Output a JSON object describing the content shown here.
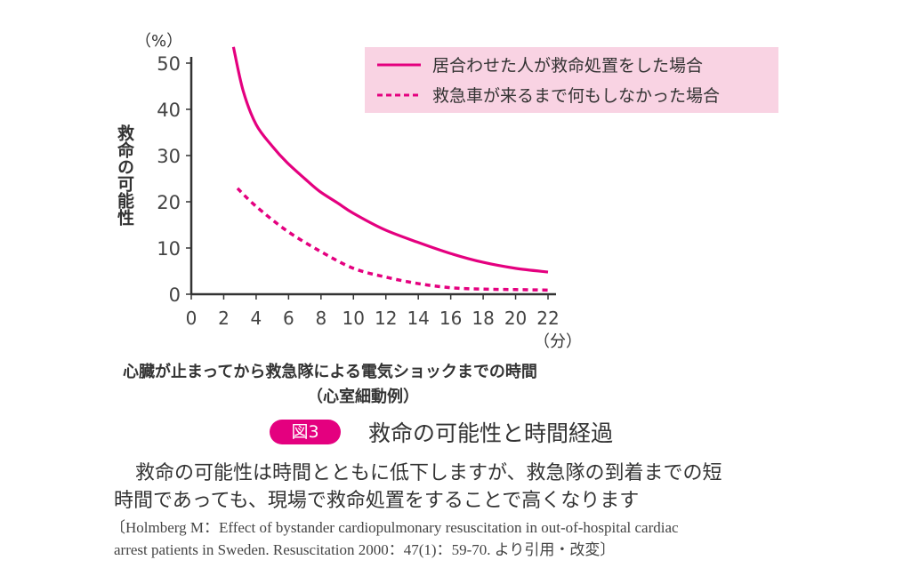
{
  "chart_data": {
    "type": "line",
    "title": "救命の可能性と時間経過",
    "figure_label": "図3",
    "xlabel": "心臓が止まってから救急隊による電気ショックまでの時間",
    "xlabel_sub": "（心室細動例）",
    "x_unit": "（分）",
    "ylabel": "救命の可能性",
    "y_unit": "（%）",
    "xlim": [
      0,
      22
    ],
    "ylim": [
      0,
      50
    ],
    "x_ticks": [
      "0",
      "2",
      "4",
      "6",
      "8",
      "10",
      "12",
      "14",
      "16",
      "18",
      "20",
      "22"
    ],
    "y_ticks": [
      "0",
      "10",
      "20",
      "30",
      "40",
      "50"
    ],
    "grid": false,
    "legend_position": "top-right",
    "colors": {
      "series": "#e4007f",
      "legend_bg": "#f9d3e3",
      "axis": "#333333"
    },
    "series": [
      {
        "name": "居合わせた人が救命処置をした場合",
        "style": "solid",
        "x": [
          2.6,
          3.2,
          4.0,
          5.0,
          5.9,
          7.0,
          7.9,
          9.0,
          10.0,
          11.9,
          14.0,
          16.0,
          18.0,
          20.0,
          22.0
        ],
        "y": [
          53.5,
          44,
          36.7,
          32,
          28.5,
          25,
          22.3,
          19.8,
          17.5,
          14.0,
          11.2,
          8.8,
          6.9,
          5.6,
          4.8
        ]
      },
      {
        "name": "救急車が来るまで何もしなかった場合",
        "style": "dotted",
        "x": [
          2.85,
          4.0,
          5.9,
          8.0,
          10.0,
          12.0,
          14.0,
          16.0,
          18.0,
          20.0,
          22.0
        ],
        "y": [
          22.9,
          19.0,
          13.7,
          9.2,
          5.6,
          3.7,
          2.3,
          1.4,
          1.1,
          1.0,
          0.9
        ]
      }
    ]
  },
  "caption": {
    "line1": "救命の可能性は時間とともに低下しますが、救急隊の到着までの短",
    "line2": "時間であっても、現場で救命処置をすることで高くなります",
    "cite1": "〔Holmberg M：Effect of bystander cardiopulmonary resuscitation in out-of-hospital cardiac",
    "cite2": "arrest patients in Sweden. Resuscitation 2000：47(1)：59-70. より引用・改変〕"
  }
}
